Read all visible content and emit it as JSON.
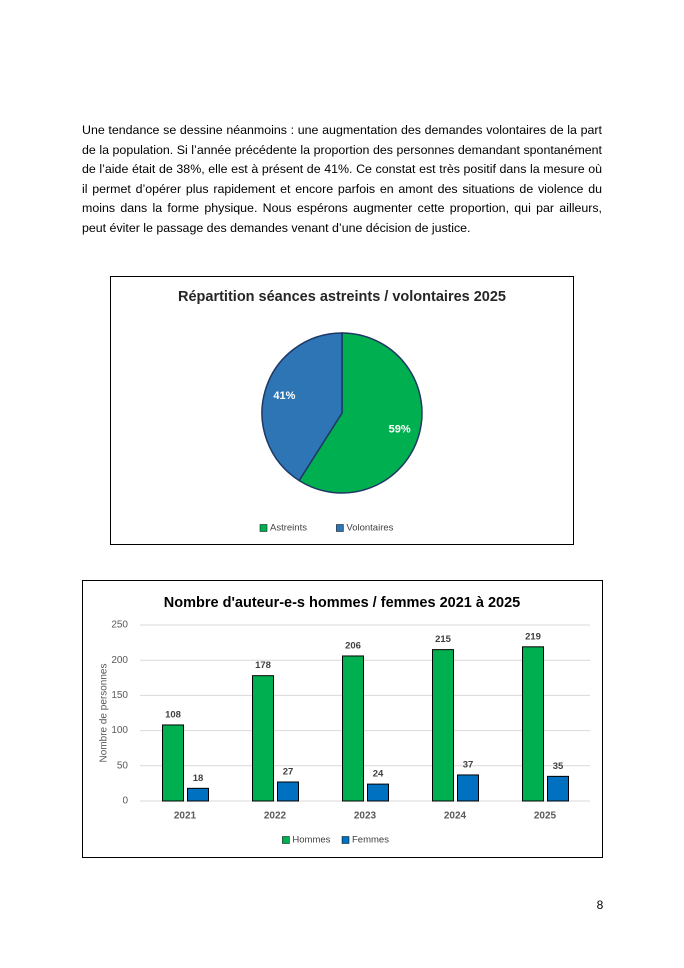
{
  "paragraph": "Une tendance se dessine néanmoins : une augmentation des demandes volontaires de la part de la population. Si l’année précédente la proportion des personnes demandant spontanément de l’aide était de 38%, elle est à présent de 41%. Ce constat est très positif dans la mesure où il permet d’opérer plus rapidement et encore parfois en amont des situations de violence du moins dans la forme physique. Nous espérons augmenter cette proportion, qui par ailleurs, peut éviter le passage des demandes venant d’une décision de justice.",
  "chart_data": [
    {
      "type": "pie",
      "title": "Répartition séances astreints / volontaires 2025",
      "categories": [
        "Astreints",
        "Volontaires"
      ],
      "values": [
        59,
        41
      ],
      "value_labels": [
        "59%",
        "41%"
      ],
      "colors": [
        "#00b050",
        "#2e75b6"
      ]
    },
    {
      "type": "bar",
      "title": "Nombre d'auteur-e-s hommes / femmes 2021 à 2025",
      "ylabel": "Nombre de personnes",
      "categories": [
        "2021",
        "2022",
        "2023",
        "2024",
        "2025"
      ],
      "series": [
        {
          "name": "Hommes",
          "color": "#00b050",
          "values": [
            108,
            178,
            206,
            215,
            219
          ]
        },
        {
          "name": "Femmes",
          "color": "#0070c0",
          "values": [
            18,
            27,
            24,
            37,
            35
          ]
        }
      ],
      "ylim": [
        0,
        250
      ],
      "yticks": [
        0,
        50,
        100,
        150,
        200,
        250
      ],
      "grid": true
    }
  ],
  "page_number": "8"
}
